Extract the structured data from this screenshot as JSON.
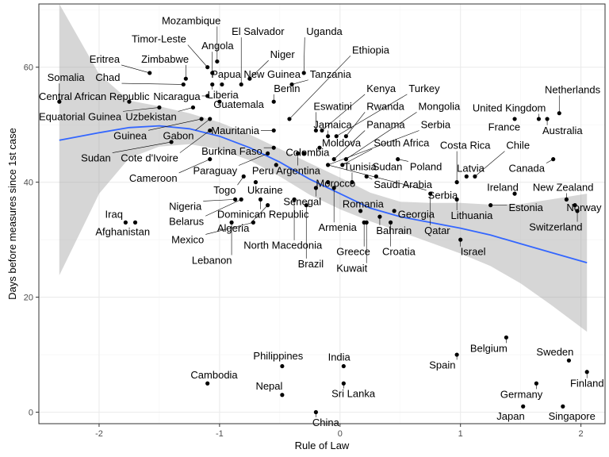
{
  "chart_data": {
    "type": "scatter",
    "xlabel": "Rule of Law",
    "ylabel": "Days before measures since 1st case",
    "xlim": [
      -2.5,
      2.2
    ],
    "ylim": [
      -2,
      71
    ],
    "x_ticks": [
      -2,
      -1,
      0,
      1,
      2
    ],
    "y_ticks": [
      0,
      20,
      40,
      60
    ],
    "grid": true,
    "colors": {
      "point": "#000000",
      "trend": "#3366ff",
      "band": "#999999",
      "grid_major": "#ebebeb",
      "grid_minor": "#f5f5f5",
      "panel_border": "#333333"
    },
    "points": [
      {
        "label": "Somalia",
        "x": -2.33,
        "y": 54
      },
      {
        "label": "Central African Republic",
        "x": -1.75,
        "y": 54
      },
      {
        "label": "Equatorial Guinea",
        "x": -1.5,
        "y": 53
      },
      {
        "label": "Iraq",
        "x": -1.78,
        "y": 33
      },
      {
        "label": "Afghanistan",
        "x": -1.7,
        "y": 33
      },
      {
        "label": "Eritrea",
        "x": -1.58,
        "y": 59
      },
      {
        "label": "Chad",
        "x": -1.3,
        "y": 57
      },
      {
        "label": "Zimbabwe",
        "x": -1.28,
        "y": 58
      },
      {
        "label": "Timor-Leste",
        "x": -1.1,
        "y": 60
      },
      {
        "label": "Mozambique",
        "x": -1.02,
        "y": 61
      },
      {
        "label": "Angola",
        "x": -1.06,
        "y": 59
      },
      {
        "label": "Papua New Guinea",
        "x": -0.98,
        "y": 57
      },
      {
        "label": "Liberia",
        "x": -1.06,
        "y": 57
      },
      {
        "label": "Nicaragua",
        "x": -1.1,
        "y": 55
      },
      {
        "label": "Guatemala",
        "x": -1.0,
        "y": 54
      },
      {
        "label": "Uzbekistan",
        "x": -1.22,
        "y": 53
      },
      {
        "label": "Gabon",
        "x": -1.08,
        "y": 51
      },
      {
        "label": "Guinea",
        "x": -1.15,
        "y": 51
      },
      {
        "label": "Sudan",
        "x": -1.4,
        "y": 47
      },
      {
        "label": "Cote d'Ivoire",
        "x": -1.08,
        "y": 49
      },
      {
        "label": "Cameroon",
        "x": -1.08,
        "y": 44
      },
      {
        "label": "Mauritania",
        "x": -0.55,
        "y": 49
      },
      {
        "label": "El Salvador",
        "x": -0.82,
        "y": 57
      },
      {
        "label": "Niger",
        "x": -0.75,
        "y": 58
      },
      {
        "label": "Benin",
        "x": -0.55,
        "y": 54
      },
      {
        "label": "Uganda",
        "x": -0.3,
        "y": 59
      },
      {
        "label": "Tanzania",
        "x": -0.4,
        "y": 57
      },
      {
        "label": "Ethiopia",
        "x": -0.42,
        "y": 51
      },
      {
        "label": "Burkina Faso",
        "x": -0.55,
        "y": 46
      },
      {
        "label": "Paraguay",
        "x": -0.6,
        "y": 45
      },
      {
        "label": "Peru",
        "x": -0.53,
        "y": 43
      },
      {
        "label": "Togo",
        "x": -0.8,
        "y": 41
      },
      {
        "label": "Ukraine",
        "x": -0.7,
        "y": 40
      },
      {
        "label": "Nigeria",
        "x": -0.87,
        "y": 37
      },
      {
        "label": "Belarus",
        "x": -0.82,
        "y": 37
      },
      {
        "label": "Dominican Republic",
        "x": -0.66,
        "y": 37
      },
      {
        "label": "Mexico",
        "x": -0.72,
        "y": 33
      },
      {
        "label": "Algeria",
        "x": -0.6,
        "y": 36
      },
      {
        "label": "Lebanon",
        "x": -0.9,
        "y": 33
      },
      {
        "label": "North Macedonia",
        "x": -0.38,
        "y": 37
      },
      {
        "label": "Senegal",
        "x": -0.2,
        "y": 39
      },
      {
        "label": "Brazil",
        "x": -0.28,
        "y": 36
      },
      {
        "label": "Argentina",
        "x": -0.35,
        "y": 45
      },
      {
        "label": "Colombia",
        "x": -0.3,
        "y": 45
      },
      {
        "label": "Eswatini",
        "x": -0.2,
        "y": 49
      },
      {
        "label": "Kenya",
        "x": -0.15,
        "y": 49
      },
      {
        "label": "Jamaica",
        "x": -0.1,
        "y": 48
      },
      {
        "label": "Turkey",
        "x": -0.03,
        "y": 48
      },
      {
        "label": "Rwanda",
        "x": 0.05,
        "y": 48
      },
      {
        "label": "Moldova",
        "x": -0.17,
        "y": 46
      },
      {
        "label": "Panama",
        "x": -0.05,
        "y": 44
      },
      {
        "label": "Mongolia",
        "x": 0.05,
        "y": 44
      },
      {
        "label": "Serbia",
        "x": -0.1,
        "y": 43
      },
      {
        "label": "South Africa",
        "x": 0.02,
        "y": 43
      },
      {
        "label": "Morocco",
        "x": -0.1,
        "y": 40
      },
      {
        "label": "Tunisia",
        "x": 0.1,
        "y": 40
      },
      {
        "label": "Armenia",
        "x": -0.05,
        "y": 39
      },
      {
        "label": "India",
        "x": 0.03,
        "y": 8
      },
      {
        "label": "Sri Lanka",
        "x": 0.03,
        "y": 5
      },
      {
        "label": "Philippines",
        "x": -0.48,
        "y": 8
      },
      {
        "label": "Nepal",
        "x": -0.48,
        "y": 3
      },
      {
        "label": "China",
        "x": -0.2,
        "y": 0
      },
      {
        "label": "Cambodia",
        "x": -1.1,
        "y": 5
      },
      {
        "label": "Sudan",
        "x": 0.3,
        "y": 41
      },
      {
        "label": "Saudi Arabia",
        "x": 0.22,
        "y": 41
      },
      {
        "label": "Romania",
        "x": 0.17,
        "y": 35
      },
      {
        "label": "Greece",
        "x": 0.2,
        "y": 33
      },
      {
        "label": "Kuwait",
        "x": 0.22,
        "y": 33
      },
      {
        "label": "Bahrain",
        "x": 0.33,
        "y": 34
      },
      {
        "label": "Croatia",
        "x": 0.42,
        "y": 33
      },
      {
        "label": "Georgia",
        "x": 0.45,
        "y": 35
      },
      {
        "label": "Poland",
        "x": 0.48,
        "y": 44
      },
      {
        "label": "Qatar",
        "x": 0.75,
        "y": 38
      },
      {
        "label": "Costa Rica",
        "x": 0.97,
        "y": 40
      },
      {
        "label": "Lithuania",
        "x": 0.97,
        "y": 37
      },
      {
        "label": "Israel",
        "x": 1.0,
        "y": 30
      },
      {
        "label": "Latvia",
        "x": 1.05,
        "y": 41
      },
      {
        "label": "Chile",
        "x": 1.12,
        "y": 41
      },
      {
        "label": "Estonia",
        "x": 1.25,
        "y": 36
      },
      {
        "label": "Ireland",
        "x": 1.45,
        "y": 38
      },
      {
        "label": "France",
        "x": 1.45,
        "y": 51
      },
      {
        "label": "United Kingdom",
        "x": 1.65,
        "y": 51
      },
      {
        "label": "Australia",
        "x": 1.72,
        "y": 51
      },
      {
        "label": "Netherlands",
        "x": 1.82,
        "y": 52
      },
      {
        "label": "Canada",
        "x": 1.77,
        "y": 44
      },
      {
        "label": "New Zealand",
        "x": 1.88,
        "y": 37
      },
      {
        "label": "Norway",
        "x": 1.95,
        "y": 36
      },
      {
        "label": "Switzerland",
        "x": 1.97,
        "y": 35
      },
      {
        "label": "Spain",
        "x": 0.97,
        "y": 10
      },
      {
        "label": "Belgium",
        "x": 1.38,
        "y": 13
      },
      {
        "label": "Germany",
        "x": 1.63,
        "y": 5
      },
      {
        "label": "Japan",
        "x": 1.52,
        "y": 1
      },
      {
        "label": "Sweden",
        "x": 1.9,
        "y": 9
      },
      {
        "label": "Finland",
        "x": 2.05,
        "y": 7
      },
      {
        "label": "Singapore",
        "x": 1.85,
        "y": 1
      }
    ],
    "labels": [
      {
        "text": "Somalia",
        "x": -2.43,
        "y": 57.6
      },
      {
        "text": "Central African Republic",
        "x": -2.5,
        "y": 54.3
      },
      {
        "text": "Equatorial Guinea",
        "x": -2.5,
        "y": 50.8
      },
      {
        "text": "Eritrea",
        "x": -2.08,
        "y": 60.8
      },
      {
        "text": "Zimbabwe",
        "x": -1.65,
        "y": 60.8
      },
      {
        "text": "Chad",
        "x": -2.03,
        "y": 57.6
      },
      {
        "text": "Timor-Leste",
        "x": -1.73,
        "y": 64.3
      },
      {
        "text": "Mozambique",
        "x": -1.48,
        "y": 67.5
      },
      {
        "text": "Angola",
        "x": -1.15,
        "y": 63.1
      },
      {
        "text": "El Salvador",
        "x": -0.9,
        "y": 65.6
      },
      {
        "text": "Uganda",
        "x": -0.28,
        "y": 65.6
      },
      {
        "text": "Niger",
        "x": -0.58,
        "y": 61.6
      },
      {
        "text": "Papua New Guinea",
        "x": -1.07,
        "y": 58.2
      },
      {
        "text": "Tanzania",
        "x": -0.25,
        "y": 58.2
      },
      {
        "text": "Ethiopia",
        "x": 0.1,
        "y": 62.4
      },
      {
        "text": "Benin",
        "x": -0.55,
        "y": 55.7
      },
      {
        "text": "Liberia",
        "x": -1.1,
        "y": 54.6
      },
      {
        "text": "Nicaragua",
        "x": -1.55,
        "y": 54.3
      },
      {
        "text": "Guatemala",
        "x": -1.05,
        "y": 52.9
      },
      {
        "text": "Uzbekistan",
        "x": -1.78,
        "y": 50.8
      },
      {
        "text": "Kenya",
        "x": 0.22,
        "y": 55.7
      },
      {
        "text": "Turkey",
        "x": 0.57,
        "y": 55.7
      },
      {
        "text": "Eswatini",
        "x": -0.22,
        "y": 52.6
      },
      {
        "text": "Rwanda",
        "x": 0.22,
        "y": 52.6
      },
      {
        "text": "Mongolia",
        "x": 0.65,
        "y": 52.6
      },
      {
        "text": "Jamaica",
        "x": -0.22,
        "y": 49.4
      },
      {
        "text": "Panama",
        "x": 0.22,
        "y": 49.4
      },
      {
        "text": "Serbia",
        "x": 0.67,
        "y": 49.4
      },
      {
        "text": "Guinea",
        "x": -1.88,
        "y": 47.5
      },
      {
        "text": "Gabon",
        "x": -1.47,
        "y": 47.5
      },
      {
        "text": "Mauritania",
        "x": -1.07,
        "y": 48.4
      },
      {
        "text": "Sudan",
        "x": -2.15,
        "y": 43.6
      },
      {
        "text": "Cote d'Ivoire",
        "x": -1.82,
        "y": 43.6
      },
      {
        "text": "Burkina Faso",
        "x": -1.15,
        "y": 44.8
      },
      {
        "text": "Moldova",
        "x": -0.15,
        "y": 46.2
      },
      {
        "text": "South Africa",
        "x": 0.28,
        "y": 46.2
      },
      {
        "text": "Colombia",
        "x": -0.45,
        "y": 44.6
      },
      {
        "text": "Costa Rica",
        "x": 0.83,
        "y": 45.8
      },
      {
        "text": "Chile",
        "x": 1.38,
        "y": 45.8
      },
      {
        "text": "France",
        "x": 1.23,
        "y": 49.0
      },
      {
        "text": "United Kingdom",
        "x": 1.1,
        "y": 52.3
      },
      {
        "text": "Australia",
        "x": 1.68,
        "y": 48.4
      },
      {
        "text": "Netherlands",
        "x": 1.7,
        "y": 55.5
      },
      {
        "text": "Cameroon",
        "x": -1.75,
        "y": 40.1
      },
      {
        "text": "Paraguay",
        "x": -1.22,
        "y": 41.4
      },
      {
        "text": "Peru",
        "x": -0.73,
        "y": 41.4
      },
      {
        "text": "Argentina",
        "x": -0.53,
        "y": 41.4
      },
      {
        "text": "Tunisia",
        "x": 0.03,
        "y": 42.1
      },
      {
        "text": "Sudan",
        "x": 0.27,
        "y": 42.1
      },
      {
        "text": "Poland",
        "x": 0.58,
        "y": 42.1
      },
      {
        "text": "Latvia",
        "x": 0.97,
        "y": 41.8
      },
      {
        "text": "Canada",
        "x": 1.4,
        "y": 41.8
      },
      {
        "text": "Morocco",
        "x": -0.2,
        "y": 39.2
      },
      {
        "text": "Saudi Arabia",
        "x": 0.28,
        "y": 39.0
      },
      {
        "text": "Ireland",
        "x": 1.22,
        "y": 38.5
      },
      {
        "text": "New Zealand",
        "x": 1.6,
        "y": 38.5
      },
      {
        "text": "Togo",
        "x": -1.05,
        "y": 38.0
      },
      {
        "text": "Ukraine",
        "x": -0.77,
        "y": 38.0
      },
      {
        "text": "Senegal",
        "x": -0.47,
        "y": 36.0
      },
      {
        "text": "Romania",
        "x": 0.02,
        "y": 35.6
      },
      {
        "text": "Serbia",
        "x": 0.73,
        "y": 37.1
      },
      {
        "text": "Estonia",
        "x": 1.4,
        "y": 35.0
      },
      {
        "text": "Norway",
        "x": 1.88,
        "y": 35.0
      },
      {
        "text": "Lithuania",
        "x": 0.92,
        "y": 33.6
      },
      {
        "text": "Georgia",
        "x": 0.48,
        "y": 33.8
      },
      {
        "text": "Nigeria",
        "x": -1.42,
        "y": 35.2
      },
      {
        "text": "Belarus",
        "x": -1.42,
        "y": 32.6
      },
      {
        "text": "Dominican Republic",
        "x": -1.02,
        "y": 33.8
      },
      {
        "text": "Armenia",
        "x": -0.18,
        "y": 31.5
      },
      {
        "text": "Bahrain",
        "x": 0.3,
        "y": 31.0
      },
      {
        "text": "Qatar",
        "x": 0.7,
        "y": 31.0
      },
      {
        "text": "Switzerland",
        "x": 1.57,
        "y": 31.6
      },
      {
        "text": "Iraq",
        "x": -1.95,
        "y": 33.8
      },
      {
        "text": "Afghanistan",
        "x": -2.03,
        "y": 30.8
      },
      {
        "text": "Algeria",
        "x": -1.02,
        "y": 31.4
      },
      {
        "text": "Mexico",
        "x": -1.4,
        "y": 29.4
      },
      {
        "text": "North Macedonia",
        "x": -0.8,
        "y": 28.4
      },
      {
        "text": "Greece",
        "x": -0.03,
        "y": 27.3
      },
      {
        "text": "Croatia",
        "x": 0.35,
        "y": 27.3
      },
      {
        "text": "Israel",
        "x": 1.0,
        "y": 27.3
      },
      {
        "text": "Lebanon",
        "x": -1.23,
        "y": 25.8
      },
      {
        "text": "Brazil",
        "x": -0.35,
        "y": 25.2
      },
      {
        "text": "Kuwait",
        "x": -0.03,
        "y": 24.4
      },
      {
        "text": "Belgium",
        "x": 1.08,
        "y": 10.5
      },
      {
        "text": "Sweden",
        "x": 1.63,
        "y": 9.9
      },
      {
        "text": "Philippines",
        "x": -0.72,
        "y": 9.2
      },
      {
        "text": "India",
        "x": -0.1,
        "y": 9.0
      },
      {
        "text": "Spain",
        "x": 0.74,
        "y": 7.6
      },
      {
        "text": "Cambodia",
        "x": -1.24,
        "y": 5.9
      },
      {
        "text": "Finland",
        "x": 1.91,
        "y": 4.4
      },
      {
        "text": "Nepal",
        "x": -0.7,
        "y": 3.9
      },
      {
        "text": "Sri Lanka",
        "x": -0.07,
        "y": 2.6
      },
      {
        "text": "Germany",
        "x": 1.33,
        "y": 2.5
      },
      {
        "text": "Japan",
        "x": 1.3,
        "y": -1.3
      },
      {
        "text": "Singapore",
        "x": 1.73,
        "y": -1.3
      },
      {
        "text": "China",
        "x": -0.23,
        "y": -2.4
      }
    ],
    "trend": {
      "x": [
        -2.33,
        -2.0,
        -1.75,
        -1.5,
        -1.25,
        -1.0,
        -0.75,
        -0.5,
        -0.25,
        0.0,
        0.25,
        0.5,
        0.75,
        1.0,
        1.25,
        1.5,
        1.75,
        2.05
      ],
      "y": [
        47.3,
        48.6,
        49.5,
        49.8,
        49.3,
        48.0,
        46.0,
        43.5,
        40.5,
        38.0,
        35.5,
        34.0,
        33.0,
        32.0,
        30.8,
        29.3,
        27.8,
        26.0
      ],
      "lower": [
        23.8,
        38.0,
        44.2,
        46.2,
        46.6,
        45.7,
        43.8,
        41.0,
        37.8,
        35.3,
        33.2,
        31.4,
        29.5,
        27.6,
        25.4,
        22.4,
        18.7,
        14.0
      ],
      "upper": [
        71.0,
        58.8,
        54.2,
        53.2,
        52.0,
        50.4,
        48.3,
        45.8,
        43.3,
        40.8,
        38.2,
        36.6,
        36.4,
        36.4,
        36.1,
        36.2,
        37.0,
        38.0
      ]
    }
  }
}
